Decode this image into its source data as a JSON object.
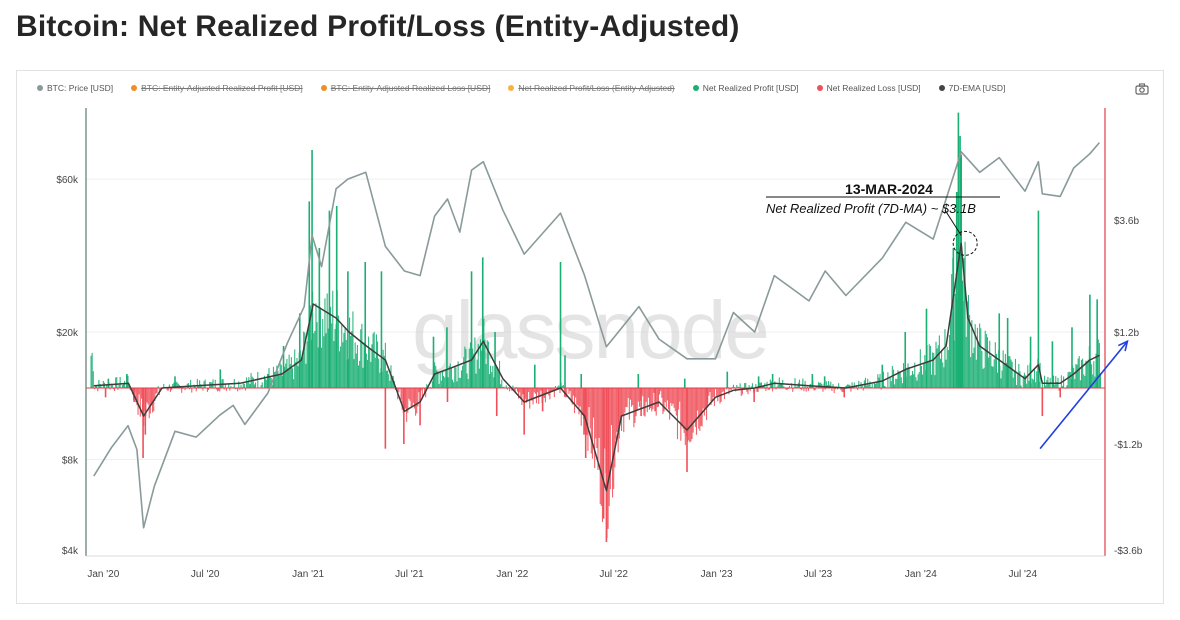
{
  "page": {
    "title": "Bitcoin: Net Realized Profit/Loss (Entity-Adjusted)"
  },
  "legend": [
    {
      "label": "BTC: Price [USD]",
      "color": "#8a9a9a",
      "disabled": false
    },
    {
      "label": "BTC: Entity-Adjusted Realized Profit [USD]",
      "color": "#f28c28",
      "disabled": true
    },
    {
      "label": "BTC: Entity-Adjusted Realized Loss [USD]",
      "color": "#f28c28",
      "disabled": true
    },
    {
      "label": "Net Realized Profit/Loss (Entity-Adjusted)",
      "color": "#f5b342",
      "disabled": true
    },
    {
      "label": "Net Realized Profit [USD]",
      "color": "#1aaf73",
      "disabled": false
    },
    {
      "label": "Net Realized Loss [USD]",
      "color": "#f0505a",
      "disabled": false
    },
    {
      "label": "7D-EMA [USD]",
      "color": "#444444",
      "disabled": false
    }
  ],
  "icons": {
    "camera": "camera-icon"
  },
  "chart_data": {
    "type": "line",
    "watermark": "glassnode",
    "x_ticks": [
      "Jan '20",
      "Jul '20",
      "Jan '21",
      "Jul '21",
      "Jan '22",
      "Jul '22",
      "Jan '23",
      "Jul '23",
      "Jan '24",
      "Jul '24"
    ],
    "y_left": {
      "scale": "log",
      "ticks": [
        "$60k",
        "$20k",
        "$8k",
        "$4k"
      ],
      "range": [
        4000,
        100000
      ]
    },
    "y_right": {
      "ticks": [
        "$3.6b",
        "$1.2b",
        "-$1.2b",
        "-$3.6b"
      ],
      "range": [
        -3.6,
        6.0
      ],
      "unit": "USD billions"
    },
    "annotation": {
      "date": "13-MAR-2024",
      "text": "Net Realized Profit (7D-MA) ~ $3.1B",
      "target_date": "2024-03-13",
      "value": 3.1
    },
    "trend_arrow": {
      "color": "#1f3fe0",
      "from_date": "2024-08-01",
      "from_value": -1.3,
      "to_date": "2024-11-15",
      "to_value": 1.0
    },
    "colors": {
      "price": "#8a9a9a",
      "profit": "#1aaf73",
      "loss": "#f0505a",
      "ema": "#3d3d3d",
      "zero": "#e0404a",
      "axis_right": "#e0404a",
      "axis_left": "#5a7a70"
    },
    "series": [
      {
        "name": "BTC: Price [USD]",
        "points": [
          [
            "2019-12-15",
            7100
          ],
          [
            "2020-01-15",
            8700
          ],
          [
            "2020-02-14",
            10200
          ],
          [
            "2020-03-01",
            8600
          ],
          [
            "2020-03-13",
            4900
          ],
          [
            "2020-04-01",
            6600
          ],
          [
            "2020-05-08",
            9800
          ],
          [
            "2020-06-15",
            9400
          ],
          [
            "2020-07-27",
            11000
          ],
          [
            "2020-08-20",
            11800
          ],
          [
            "2020-09-10",
            10300
          ],
          [
            "2020-10-21",
            12900
          ],
          [
            "2020-11-25",
            18500
          ],
          [
            "2020-12-25",
            24000
          ],
          [
            "2021-01-08",
            40000
          ],
          [
            "2021-01-25",
            32000
          ],
          [
            "2021-02-20",
            56000
          ],
          [
            "2021-03-13",
            60000
          ],
          [
            "2021-04-14",
            63000
          ],
          [
            "2021-05-19",
            37000
          ],
          [
            "2021-06-22",
            31000
          ],
          [
            "2021-07-20",
            30000
          ],
          [
            "2021-08-15",
            46000
          ],
          [
            "2021-09-07",
            52000
          ],
          [
            "2021-09-29",
            41000
          ],
          [
            "2021-10-20",
            64000
          ],
          [
            "2021-11-10",
            68000
          ],
          [
            "2021-12-15",
            48000
          ],
          [
            "2022-01-22",
            35000
          ],
          [
            "2022-03-28",
            47000
          ],
          [
            "2022-05-10",
            30000
          ],
          [
            "2022-06-18",
            18000
          ],
          [
            "2022-08-15",
            24000
          ],
          [
            "2022-09-20",
            19000
          ],
          [
            "2022-11-09",
            16500
          ],
          [
            "2022-12-30",
            16500
          ],
          [
            "2023-01-31",
            23000
          ],
          [
            "2023-03-10",
            20000
          ],
          [
            "2023-04-14",
            30000
          ],
          [
            "2023-06-15",
            25000
          ],
          [
            "2023-07-14",
            31000
          ],
          [
            "2023-08-20",
            26000
          ],
          [
            "2023-10-24",
            34000
          ],
          [
            "2023-12-05",
            44000
          ],
          [
            "2024-01-23",
            39000
          ],
          [
            "2024-02-15",
            52000
          ],
          [
            "2024-03-13",
            73000
          ],
          [
            "2024-04-15",
            63000
          ],
          [
            "2024-05-20",
            70000
          ],
          [
            "2024-07-05",
            55000
          ],
          [
            "2024-07-29",
            68000
          ],
          [
            "2024-08-05",
            54000
          ],
          [
            "2024-09-06",
            53000
          ],
          [
            "2024-09-30",
            65000
          ],
          [
            "2024-10-29",
            72000
          ],
          [
            "2024-11-15",
            78000
          ]
        ]
      },
      {
        "name": "7D-EMA [USD]",
        "points": [
          [
            "2019-12-15",
            0.05
          ],
          [
            "2020-02-15",
            0.1
          ],
          [
            "2020-03-13",
            -0.6
          ],
          [
            "2020-04-15",
            0.0
          ],
          [
            "2020-06-15",
            0.05
          ],
          [
            "2020-09-01",
            0.1
          ],
          [
            "2020-11-15",
            0.3
          ],
          [
            "2020-12-20",
            0.6
          ],
          [
            "2021-01-10",
            1.8
          ],
          [
            "2021-02-20",
            1.5
          ],
          [
            "2021-03-15",
            1.2
          ],
          [
            "2021-04-15",
            0.9
          ],
          [
            "2021-05-19",
            0.6
          ],
          [
            "2021-06-22",
            -0.5
          ],
          [
            "2021-07-20",
            -0.3
          ],
          [
            "2021-08-15",
            0.3
          ],
          [
            "2021-09-07",
            0.4
          ],
          [
            "2021-10-20",
            0.6
          ],
          [
            "2021-11-10",
            1.0
          ],
          [
            "2021-12-15",
            0.2
          ],
          [
            "2022-01-22",
            -0.3
          ],
          [
            "2022-03-28",
            0.0
          ],
          [
            "2022-05-10",
            -0.6
          ],
          [
            "2022-06-18",
            -2.2
          ],
          [
            "2022-07-15",
            -0.6
          ],
          [
            "2022-09-20",
            -0.3
          ],
          [
            "2022-11-09",
            -0.9
          ],
          [
            "2022-12-30",
            -0.2
          ],
          [
            "2023-01-31",
            -0.05
          ],
          [
            "2023-03-10",
            0.0
          ],
          [
            "2023-04-14",
            0.1
          ],
          [
            "2023-06-15",
            0.05
          ],
          [
            "2023-08-20",
            0.0
          ],
          [
            "2023-10-24",
            0.15
          ],
          [
            "2023-12-05",
            0.4
          ],
          [
            "2024-01-23",
            0.6
          ],
          [
            "2024-02-15",
            0.9
          ],
          [
            "2024-03-13",
            3.1
          ],
          [
            "2024-03-25",
            1.5
          ],
          [
            "2024-04-15",
            0.9
          ],
          [
            "2024-05-20",
            0.6
          ],
          [
            "2024-07-05",
            0.2
          ],
          [
            "2024-07-29",
            0.5
          ],
          [
            "2024-08-05",
            0.1
          ],
          [
            "2024-09-06",
            0.1
          ],
          [
            "2024-09-30",
            0.3
          ],
          [
            "2024-10-29",
            0.6
          ],
          [
            "2024-11-15",
            0.7
          ]
        ]
      },
      {
        "name": "Net Realized Profit [USD]",
        "spikes": [
          [
            "2020-01-10",
            0.2
          ],
          [
            "2020-02-12",
            0.3
          ],
          [
            "2020-05-08",
            0.25
          ],
          [
            "2020-07-28",
            0.4
          ],
          [
            "2020-10-21",
            0.3
          ],
          [
            "2020-11-18",
            0.9
          ],
          [
            "2020-12-17",
            1.6
          ],
          [
            "2021-01-03",
            4.0
          ],
          [
            "2021-01-08",
            5.1
          ],
          [
            "2021-01-21",
            3.0
          ],
          [
            "2021-02-08",
            3.8
          ],
          [
            "2021-02-21",
            3.9
          ],
          [
            "2021-03-13",
            2.5
          ],
          [
            "2021-04-13",
            2.7
          ],
          [
            "2021-05-12",
            2.5
          ],
          [
            "2021-08-13",
            1.1
          ],
          [
            "2021-09-06",
            1.3
          ],
          [
            "2021-10-20",
            2.5
          ],
          [
            "2021-11-09",
            2.8
          ],
          [
            "2021-12-01",
            1.2
          ],
          [
            "2022-02-10",
            0.5
          ],
          [
            "2022-03-28",
            2.7
          ],
          [
            "2022-04-05",
            0.7
          ],
          [
            "2022-05-04",
            0.3
          ],
          [
            "2022-08-14",
            0.3
          ],
          [
            "2022-11-05",
            0.2
          ],
          [
            "2023-01-20",
            0.35
          ],
          [
            "2023-03-17",
            0.25
          ],
          [
            "2023-04-11",
            0.3
          ],
          [
            "2023-06-21",
            0.3
          ],
          [
            "2023-07-13",
            0.25
          ],
          [
            "2023-10-24",
            0.5
          ],
          [
            "2023-12-04",
            1.2
          ],
          [
            "2024-01-11",
            1.7
          ],
          [
            "2024-02-28",
            3.0
          ],
          [
            "2024-03-05",
            4.2
          ],
          [
            "2024-03-08",
            5.9
          ],
          [
            "2024-03-11",
            5.4
          ],
          [
            "2024-03-13",
            5.0
          ],
          [
            "2024-03-15",
            2.3
          ],
          [
            "2024-05-20",
            1.6
          ],
          [
            "2024-06-04",
            1.5
          ],
          [
            "2024-07-15",
            1.1
          ],
          [
            "2024-07-29",
            3.8
          ],
          [
            "2024-08-23",
            1.0
          ],
          [
            "2024-09-27",
            1.3
          ],
          [
            "2024-10-29",
            2.0
          ],
          [
            "2024-11-11",
            1.9
          ]
        ]
      },
      {
        "name": "Net Realized Loss [USD]",
        "spikes": [
          [
            "2020-01-05",
            -0.2
          ],
          [
            "2020-02-25",
            -0.3
          ],
          [
            "2020-03-12",
            -1.5
          ],
          [
            "2020-03-16",
            -1.0
          ],
          [
            "2021-05-19",
            -1.3
          ],
          [
            "2021-06-21",
            -1.2
          ],
          [
            "2021-07-20",
            -0.8
          ],
          [
            "2021-09-07",
            -0.3
          ],
          [
            "2021-12-04",
            -0.6
          ],
          [
            "2022-01-22",
            -1.0
          ],
          [
            "2022-02-24",
            -0.5
          ],
          [
            "2022-05-09",
            -1.0
          ],
          [
            "2022-05-12",
            -1.5
          ],
          [
            "2022-06-13",
            -2.8
          ],
          [
            "2022-06-18",
            -3.3
          ],
          [
            "2022-06-22",
            -2.0
          ],
          [
            "2022-07-10",
            -1.0
          ],
          [
            "2022-08-19",
            -0.6
          ],
          [
            "2022-09-13",
            -0.5
          ],
          [
            "2022-11-09",
            -1.8
          ],
          [
            "2022-12-15",
            -0.4
          ],
          [
            "2023-03-09",
            -0.3
          ],
          [
            "2023-08-17",
            -0.2
          ],
          [
            "2024-08-05",
            -0.6
          ],
          [
            "2024-09-06",
            -0.2
          ]
        ]
      }
    ]
  }
}
